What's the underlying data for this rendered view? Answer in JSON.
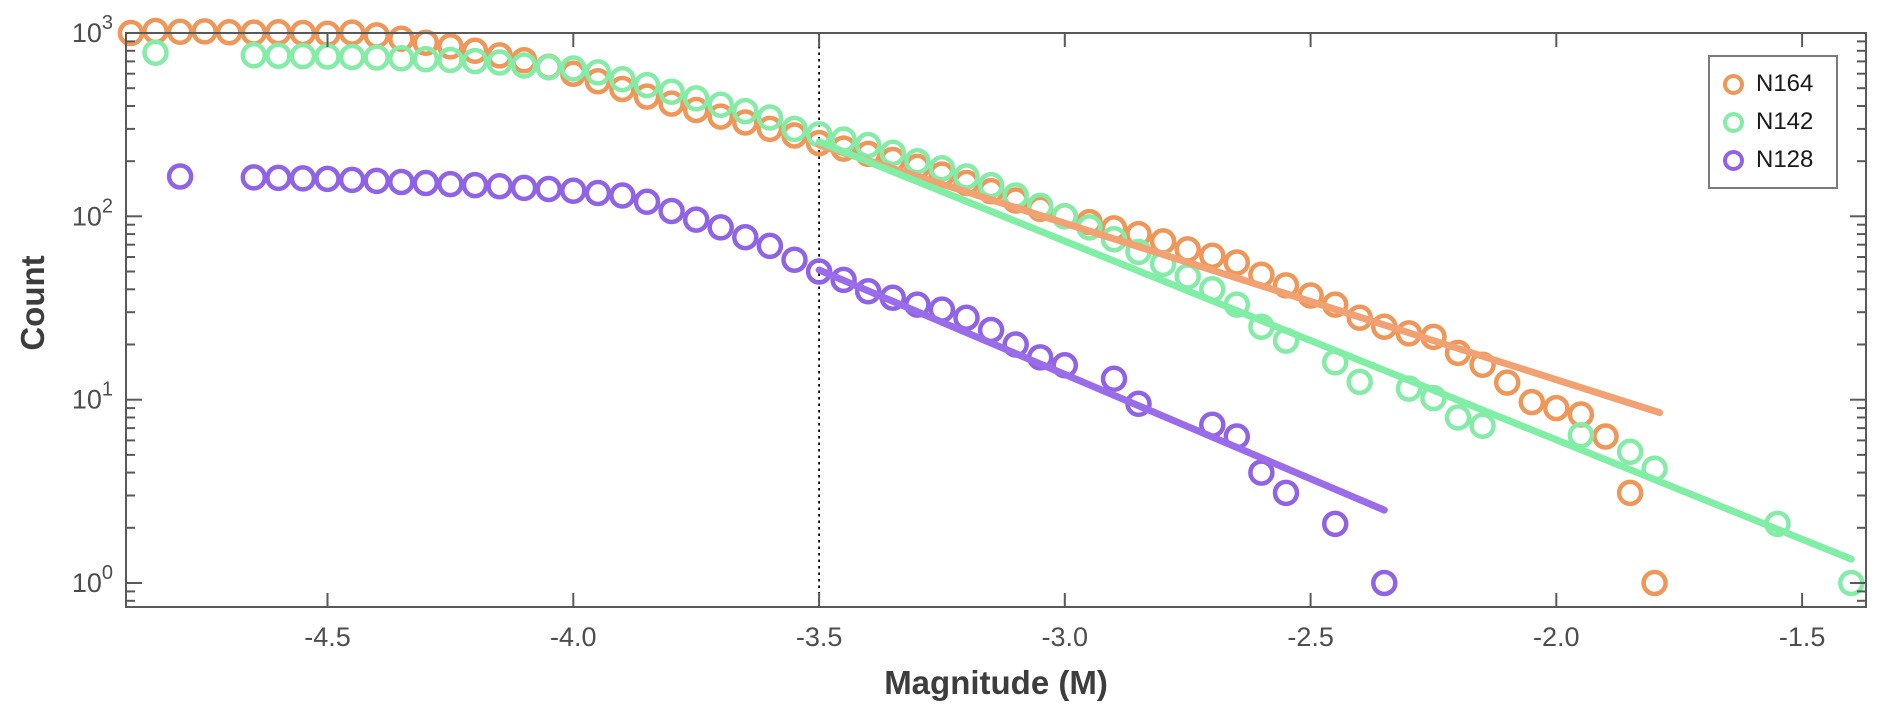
{
  "chart_data": {
    "type": "scatter",
    "title": "",
    "xlabel": "Magnitude (M)",
    "ylabel": "Count",
    "x_scale": "linear",
    "y_scale": "log",
    "xlim": [
      -4.91,
      -1.37
    ],
    "ylim": [
      0.74,
      1000
    ],
    "x_ticks": [
      -4.5,
      -4.0,
      -3.5,
      -3.0,
      -2.5,
      -2.0,
      -1.5
    ],
    "x_tick_labels": [
      "-4.5",
      "-4.0",
      "-3.5",
      "-3.0",
      "-2.5",
      "-2.0",
      "-1.5"
    ],
    "y_ticks": [
      1,
      10,
      100,
      1000
    ],
    "y_tick_labels": [
      "10^0",
      "10^1",
      "10^2",
      "10^3"
    ],
    "grid": false,
    "legend": {
      "position": "top-right",
      "border": true
    },
    "reference_line": {
      "orientation": "vertical",
      "x": -3.5,
      "style": "dotted",
      "color": "#000000"
    },
    "series": [
      {
        "name": "N164",
        "color": "#EF9659",
        "fit_color": "#F2A272",
        "marker": "circle",
        "points": [
          [
            -4.9,
            1000
          ],
          [
            -4.85,
            1025
          ],
          [
            -4.8,
            1015
          ],
          [
            -4.75,
            1020
          ],
          [
            -4.7,
            1010
          ],
          [
            -4.65,
            1005
          ],
          [
            -4.6,
            1010
          ],
          [
            -4.55,
            1000
          ],
          [
            -4.5,
            990
          ],
          [
            -4.45,
            1005
          ],
          [
            -4.4,
            970
          ],
          [
            -4.35,
            930
          ],
          [
            -4.3,
            885
          ],
          [
            -4.25,
            845
          ],
          [
            -4.2,
            800
          ],
          [
            -4.15,
            755
          ],
          [
            -4.1,
            710
          ],
          [
            -4.05,
            655
          ],
          [
            -4.0,
            600
          ],
          [
            -3.95,
            545
          ],
          [
            -3.9,
            495
          ],
          [
            -3.85,
            450
          ],
          [
            -3.8,
            412
          ],
          [
            -3.75,
            380
          ],
          [
            -3.7,
            350
          ],
          [
            -3.65,
            325
          ],
          [
            -3.6,
            300
          ],
          [
            -3.55,
            276
          ],
          [
            -3.5,
            251
          ],
          [
            -3.45,
            234
          ],
          [
            -3.4,
            219
          ],
          [
            -3.35,
            203
          ],
          [
            -3.3,
            186
          ],
          [
            -3.25,
            169
          ],
          [
            -3.2,
            152
          ],
          [
            -3.15,
            137
          ],
          [
            -3.1,
            122
          ],
          [
            -3.05,
            110
          ],
          [
            -3.0,
            100
          ],
          [
            -2.95,
            93
          ],
          [
            -2.9,
            86
          ],
          [
            -2.85,
            80
          ],
          [
            -2.8,
            73
          ],
          [
            -2.75,
            66
          ],
          [
            -2.7,
            61
          ],
          [
            -2.65,
            56
          ],
          [
            -2.6,
            48
          ],
          [
            -2.55,
            42
          ],
          [
            -2.5,
            37
          ],
          [
            -2.45,
            33
          ],
          [
            -2.4,
            28
          ],
          [
            -2.35,
            25
          ],
          [
            -2.3,
            23
          ],
          [
            -2.25,
            22
          ],
          [
            -2.2,
            18
          ],
          [
            -2.15,
            15.5
          ],
          [
            -2.1,
            12.4
          ],
          [
            -2.05,
            9.7
          ],
          [
            -2.0,
            9.0
          ],
          [
            -1.95,
            8.3
          ],
          [
            -1.9,
            6.3
          ],
          [
            -1.85,
            3.1
          ],
          [
            -1.8,
            1.0
          ]
        ],
        "fit_line": {
          "x_start": -3.5,
          "y_start": 245,
          "x_end": -1.79,
          "y_end": 8.5
        }
      },
      {
        "name": "N142",
        "color": "#85ECA7",
        "fit_color": "#80EEA4",
        "marker": "circle",
        "points": [
          [
            -4.85,
            780
          ],
          [
            -4.65,
            756
          ],
          [
            -4.6,
            752
          ],
          [
            -4.55,
            748
          ],
          [
            -4.5,
            744
          ],
          [
            -4.45,
            740
          ],
          [
            -4.4,
            735
          ],
          [
            -4.35,
            728
          ],
          [
            -4.3,
            720
          ],
          [
            -4.25,
            712
          ],
          [
            -4.2,
            703
          ],
          [
            -4.15,
            690
          ],
          [
            -4.1,
            665
          ],
          [
            -4.05,
            650
          ],
          [
            -4.0,
            640
          ],
          [
            -3.95,
            610
          ],
          [
            -3.9,
            560
          ],
          [
            -3.85,
            520
          ],
          [
            -3.8,
            478
          ],
          [
            -3.75,
            440
          ],
          [
            -3.7,
            406
          ],
          [
            -3.65,
            375
          ],
          [
            -3.6,
            346
          ],
          [
            -3.55,
            300
          ],
          [
            -3.5,
            280
          ],
          [
            -3.45,
            262
          ],
          [
            -3.4,
            245
          ],
          [
            -3.35,
            222
          ],
          [
            -3.3,
            200
          ],
          [
            -3.25,
            183
          ],
          [
            -3.2,
            165
          ],
          [
            -3.15,
            148
          ],
          [
            -3.1,
            130
          ],
          [
            -3.05,
            114
          ],
          [
            -3.0,
            100
          ],
          [
            -2.95,
            87
          ],
          [
            -2.9,
            75
          ],
          [
            -2.85,
            64
          ],
          [
            -2.8,
            55
          ],
          [
            -2.75,
            47
          ],
          [
            -2.7,
            40
          ],
          [
            -2.65,
            33
          ],
          [
            -2.6,
            25
          ],
          [
            -2.55,
            21
          ],
          [
            -2.45,
            16
          ],
          [
            -2.4,
            12.5
          ],
          [
            -2.3,
            11.5
          ],
          [
            -2.25,
            10.2
          ],
          [
            -2.2,
            8.0
          ],
          [
            -2.15,
            7.2
          ],
          [
            -1.95,
            6.4
          ],
          [
            -1.85,
            5.2
          ],
          [
            -1.8,
            4.2
          ],
          [
            -1.55,
            2.1
          ],
          [
            -1.4,
            1.0
          ]
        ],
        "fit_line": {
          "x_start": -3.5,
          "y_start": 255,
          "x_end": -1.4,
          "y_end": 1.35
        }
      },
      {
        "name": "N128",
        "color": "#9063E6",
        "fit_color": "#9A6CEA",
        "marker": "circle",
        "points": [
          [
            -4.8,
            165
          ],
          [
            -4.65,
            163
          ],
          [
            -4.6,
            162
          ],
          [
            -4.55,
            161
          ],
          [
            -4.5,
            160
          ],
          [
            -4.45,
            158
          ],
          [
            -4.4,
            156
          ],
          [
            -4.35,
            154
          ],
          [
            -4.3,
            152
          ],
          [
            -4.25,
            150
          ],
          [
            -4.2,
            148
          ],
          [
            -4.15,
            146
          ],
          [
            -4.1,
            143
          ],
          [
            -4.05,
            141
          ],
          [
            -4.0,
            138
          ],
          [
            -3.95,
            134
          ],
          [
            -3.9,
            130
          ],
          [
            -3.85,
            120
          ],
          [
            -3.8,
            107
          ],
          [
            -3.75,
            96
          ],
          [
            -3.7,
            87
          ],
          [
            -3.65,
            77
          ],
          [
            -3.6,
            69
          ],
          [
            -3.55,
            58
          ],
          [
            -3.5,
            50
          ],
          [
            -3.45,
            45
          ],
          [
            -3.4,
            39
          ],
          [
            -3.35,
            36
          ],
          [
            -3.3,
            33
          ],
          [
            -3.25,
            31
          ],
          [
            -3.2,
            28
          ],
          [
            -3.15,
            24
          ],
          [
            -3.1,
            20
          ],
          [
            -3.05,
            17
          ],
          [
            -3.0,
            15.4
          ],
          [
            -2.9,
            13
          ],
          [
            -2.85,
            9.5
          ],
          [
            -2.7,
            7.3
          ],
          [
            -2.65,
            6.3
          ],
          [
            -2.6,
            4.0
          ],
          [
            -2.55,
            3.1
          ],
          [
            -2.45,
            2.1
          ],
          [
            -2.35,
            1.0
          ]
        ],
        "fit_line": {
          "x_start": -3.5,
          "y_start": 51,
          "x_end": -2.35,
          "y_end": 2.5
        }
      }
    ]
  }
}
